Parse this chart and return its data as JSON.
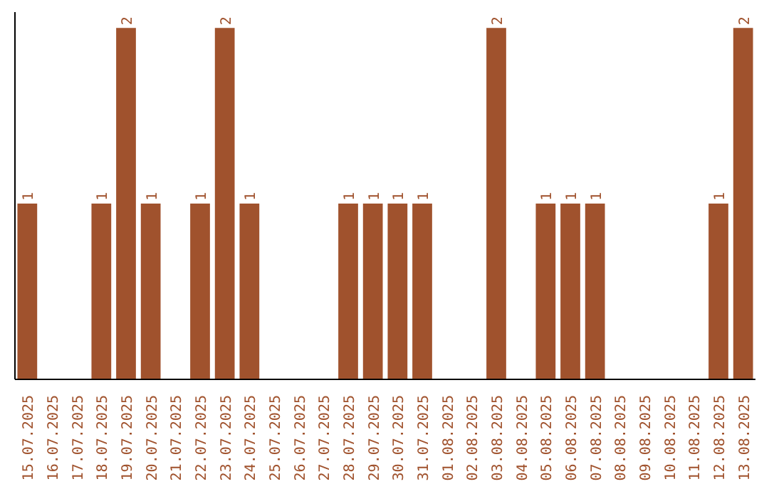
{
  "chart_data": {
    "type": "bar",
    "categories": [
      "15.07.2025",
      "16.07.2025",
      "17.07.2025",
      "18.07.2025",
      "19.07.2025",
      "20.07.2025",
      "21.07.2025",
      "22.07.2025",
      "23.07.2025",
      "24.07.2025",
      "25.07.2025",
      "26.07.2025",
      "27.07.2025",
      "28.07.2025",
      "29.07.2025",
      "30.07.2025",
      "31.07.2025",
      "01.08.2025",
      "02.08.2025",
      "03.08.2025",
      "04.08.2025",
      "05.08.2025",
      "06.08.2025",
      "07.08.2025",
      "08.08.2025",
      "09.08.2025",
      "10.08.2025",
      "11.08.2025",
      "12.08.2025",
      "13.08.2025"
    ],
    "values": [
      1,
      0,
      0,
      1,
      2,
      1,
      0,
      1,
      2,
      1,
      0,
      0,
      0,
      1,
      1,
      1,
      1,
      0,
      0,
      2,
      0,
      1,
      1,
      1,
      0,
      0,
      0,
      0,
      1,
      2
    ],
    "value_labels": [
      "1",
      null,
      null,
      "1",
      "2",
      "1",
      null,
      "1",
      "2",
      "1",
      null,
      null,
      null,
      "1",
      "1",
      "1",
      "1",
      null,
      null,
      "2",
      null,
      "1",
      "1",
      "1",
      null,
      null,
      null,
      null,
      "1",
      "2"
    ],
    "color": "#a0522d",
    "grid": false,
    "tick_labels": "x"
  }
}
